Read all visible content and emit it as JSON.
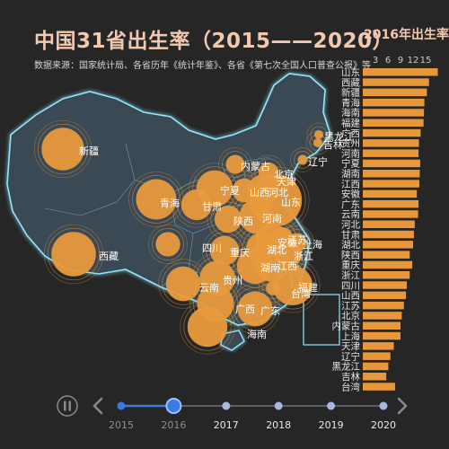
{
  "title": "中国31省出生率（2015——2020）",
  "subtitle": "数据来源：国家统计局、各省历年《统计年鉴》、各省《第七次全国人口普查公报》等",
  "bar_panel_title": "2016年出生率省",
  "colors": {
    "background": "#262626",
    "map_fill": "#3b4a55",
    "map_glow": "#8fe6ff",
    "bubble": "#e89a3c",
    "bar": "#e8973a",
    "timeline_active": "#3a7be0",
    "timeline_dot": "#a8b8e0"
  },
  "map_labels": [
    "新疆",
    "西藏",
    "青海",
    "甘肃",
    "宁夏",
    "陕西",
    "四川",
    "重庆",
    "云南",
    "贵州",
    "广西",
    "广东",
    "海南",
    "湖南",
    "湖北",
    "江西",
    "福建",
    "台湾",
    "浙江",
    "上海",
    "江苏",
    "安徽",
    "山东",
    "河南",
    "山西",
    "河北",
    "北京",
    "天津",
    "内蒙古",
    "辽宁",
    "吉林",
    "黑龙江"
  ],
  "chart_data": {
    "type": "bar",
    "orientation": "horizontal",
    "year": 2016,
    "axis_ticks": [
      "3",
      "6",
      "9",
      "12",
      "15"
    ],
    "categories": [
      "山东",
      "西藏",
      "新疆",
      "青海",
      "海南",
      "福建",
      "广西",
      "贵州",
      "河南",
      "宁夏",
      "湖南",
      "江西",
      "安徽",
      "广东",
      "云南",
      "河北",
      "甘肃",
      "湖北",
      "陕西",
      "重庆",
      "浙江",
      "四川",
      "山西",
      "江苏",
      "北京",
      "内蒙古",
      "上海",
      "天津",
      "辽宁",
      "黑龙江",
      "吉林",
      "台湾"
    ],
    "values": [
      17.9,
      15.8,
      15.3,
      14.7,
      14.6,
      14.5,
      13.8,
      13.4,
      13.3,
      13.7,
      13.6,
      13.5,
      12.9,
      13.3,
      13.2,
      12.4,
      12.2,
      12.0,
      11.2,
      11.8,
      11.2,
      10.5,
      10.3,
      9.8,
      9.3,
      9.0,
      9.0,
      7.4,
      6.6,
      6.1,
      5.6,
      7.7
    ],
    "xlim": [
      0,
      18
    ]
  },
  "timeline": {
    "years": [
      "2015",
      "2016",
      "2017",
      "2018",
      "2019",
      "2020"
    ],
    "current": "2016"
  }
}
